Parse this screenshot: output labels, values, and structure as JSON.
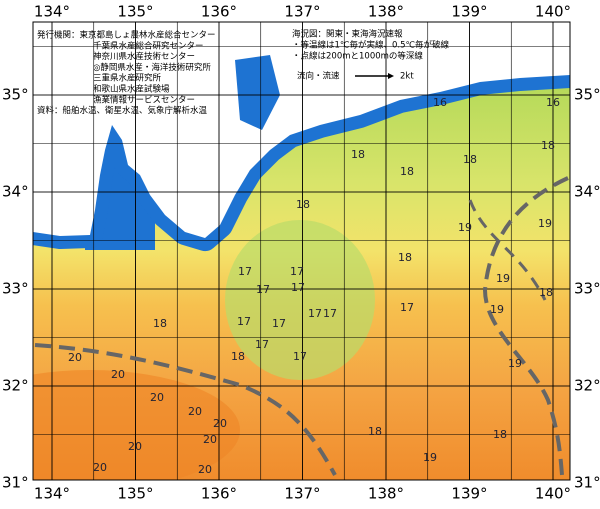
{
  "map_axes": {
    "lon_ticks": [
      {
        "value": 134,
        "label": "134°"
      },
      {
        "value": 135,
        "label": "135°"
      },
      {
        "value": 136,
        "label": "136°"
      },
      {
        "value": 137,
        "label": "137°"
      },
      {
        "value": 138,
        "label": "138°"
      },
      {
        "value": 139,
        "label": "139°"
      },
      {
        "value": 140,
        "label": "140°"
      }
    ],
    "lat_ticks": [
      {
        "value": 35,
        "label": "35°"
      },
      {
        "value": 34,
        "label": "34°"
      },
      {
        "value": 33,
        "label": "33°"
      },
      {
        "value": 32,
        "label": "32°"
      },
      {
        "value": 31,
        "label": "31°"
      }
    ]
  },
  "notes": {
    "issuers": [
      "発行機関：東京都島しょ農林水産総合センター",
      "千葉県水産総合研究センター",
      "神奈川県水産技術センター",
      "◎静岡県水産・海洋技術研究所",
      "三重県水産研究所",
      "和歌山県水産試験場",
      "漁業情報サービスセンター",
      "資料：船舶水温、衛星水温、気象庁解析水温"
    ],
    "map_info": [
      "海況図：関東・東海海況速報",
      "・等温線は1℃毎が実線、0.5℃毎が破線",
      "・点線は200mと1000mの等深線"
    ],
    "current_legend": "流向・流速",
    "current_scale": "2kt"
  },
  "isotherm_labels": [
    "16",
    "16",
    "18",
    "18",
    "18",
    "18",
    "18",
    "19",
    "19",
    "18",
    "17",
    "17",
    "17",
    "17",
    "19",
    "18",
    "17",
    "17",
    "17",
    "18",
    "17",
    "17",
    "19",
    "17",
    "17",
    "18",
    "20",
    "19",
    "20",
    "20",
    "20",
    "20",
    "20",
    "18",
    "18",
    "20",
    "19",
    "20",
    "20"
  ]
}
